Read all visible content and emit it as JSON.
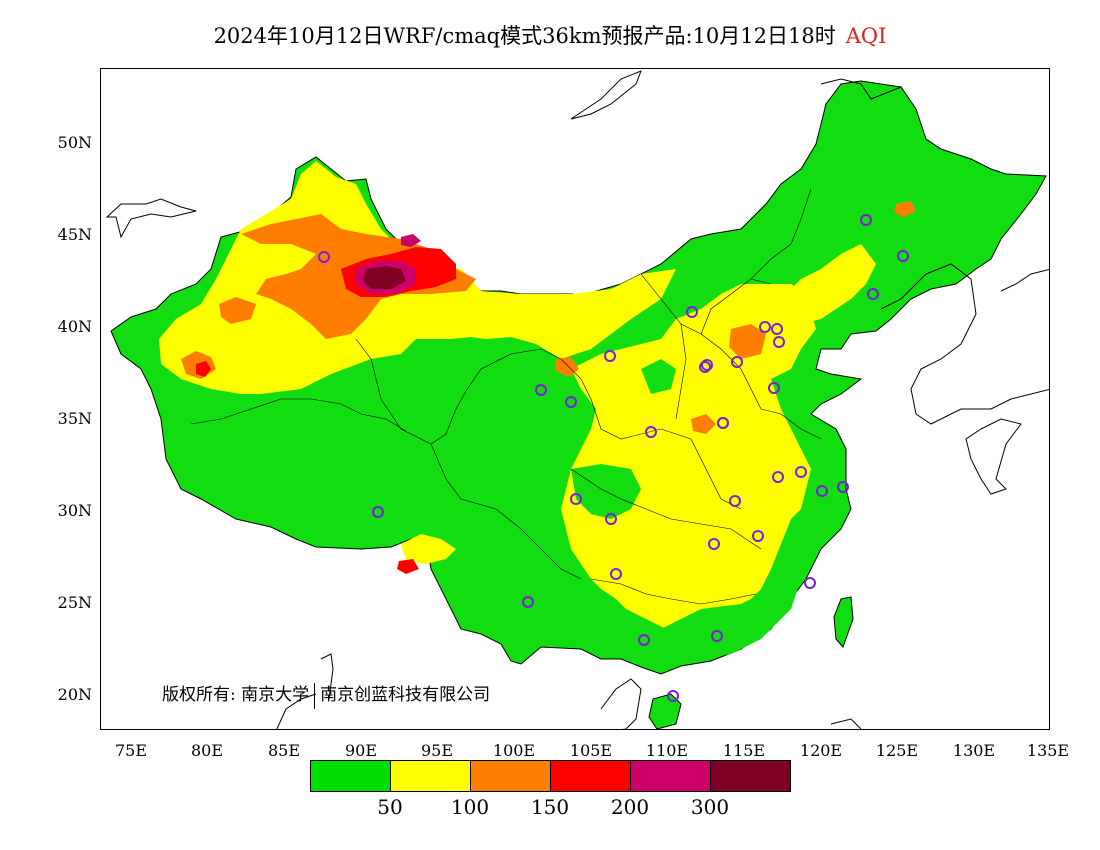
{
  "title": {
    "main": "2024年10月12日WRF/cmaq模式36km预报产品:10月12日18时",
    "variable": "AQI"
  },
  "axes": {
    "x_ticks": [
      "75E",
      "80E",
      "85E",
      "90E",
      "95E",
      "100E",
      "105E",
      "110E",
      "115E",
      "120E",
      "125E",
      "130E",
      "135E"
    ],
    "y_ticks": [
      "50N",
      "45N",
      "40N",
      "35N",
      "30N",
      "25N",
      "20N"
    ],
    "lon_range": [
      73,
      135
    ],
    "lat_range": [
      18,
      54
    ]
  },
  "copyright": {
    "prefix": "版权所有:",
    "org1": "南京大学",
    "org2": "南京创蓝科技有限公司"
  },
  "legend": {
    "colors": [
      "#00dd00",
      "#ffff00",
      "#ff7e00",
      "#ff0000",
      "#cc0066",
      "#7e0023"
    ],
    "labels": [
      "50",
      "100",
      "150",
      "200",
      "300"
    ]
  },
  "station_marker_color": "#7b1fd6"
}
